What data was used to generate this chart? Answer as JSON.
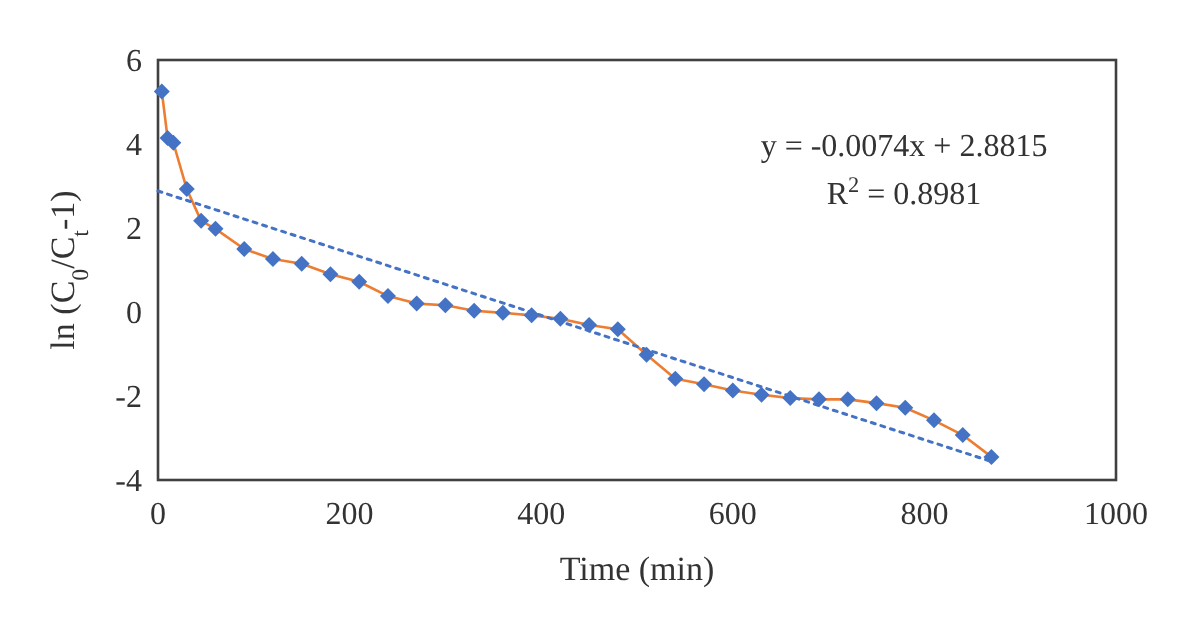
{
  "chart_data": {
    "type": "line",
    "xlabel": "Time (min)",
    "ylabel": "ln (C$_{0}$/C$_{t}$-1)",
    "xlim": [
      0,
      1000
    ],
    "xticks": [
      0,
      200,
      400,
      600,
      800,
      1000
    ],
    "ylim": [
      -4,
      6
    ],
    "yticks": [
      -4,
      -2,
      0,
      2,
      4,
      6
    ],
    "grid": false,
    "annotations": [
      "y = -0.0074x + 2.8815",
      "R$^{2}$ = 0.8981"
    ],
    "series": [
      {
        "color": "#ed7d31",
        "marker": "diamond",
        "line_style": "solid",
        "colors": [
          "#4472c4",
          "#4472c4",
          "#4472c4",
          "#4472c4",
          "#4472c4",
          "#4472c4",
          "#4472c4",
          "#4472c4",
          "#4472c4",
          "#4472c4",
          "#4472c4",
          "#4472c4",
          "#4472c4",
          "#4472c4",
          "#4472c4",
          "#4472c4",
          "#4472c4",
          "#4472c4",
          "#4472c4",
          "#4472c4",
          "#4472c4",
          "#4472c4",
          "#4472c4",
          "#4472c4",
          "#4472c4",
          "#4472c4",
          "#4472c4",
          "#4472c4",
          "#4472c4",
          "#4472c4",
          "#4472c4",
          "#4472c4",
          "#4472c4"
        ],
        "x": [
          4,
          10,
          16,
          30,
          45,
          60,
          90,
          120,
          150,
          180,
          210,
          240,
          270,
          300,
          330,
          360,
          390,
          420,
          450,
          480,
          510,
          540,
          570,
          600,
          630,
          660,
          690,
          720,
          750,
          780,
          810,
          840,
          870
        ],
        "values": [
          5.25,
          4.14,
          4.03,
          2.93,
          2.17,
          1.98,
          1.5,
          1.26,
          1.15,
          0.9,
          0.72,
          0.38,
          0.2,
          0.16,
          0.03,
          -0.02,
          -0.08,
          -0.16,
          -0.31,
          -0.41,
          -1.02,
          -1.59,
          -1.72,
          -1.87,
          -1.97,
          -2.05,
          -2.08,
          -2.08,
          -2.17,
          -2.28,
          -2.58,
          -2.93,
          -3.45
        ]
      },
      {
        "color": "#4472c4",
        "marker": "none",
        "line_style": "dotted",
        "x": [
          0,
          870
        ],
        "values": [
          2.88,
          -3.56
        ]
      }
    ]
  }
}
